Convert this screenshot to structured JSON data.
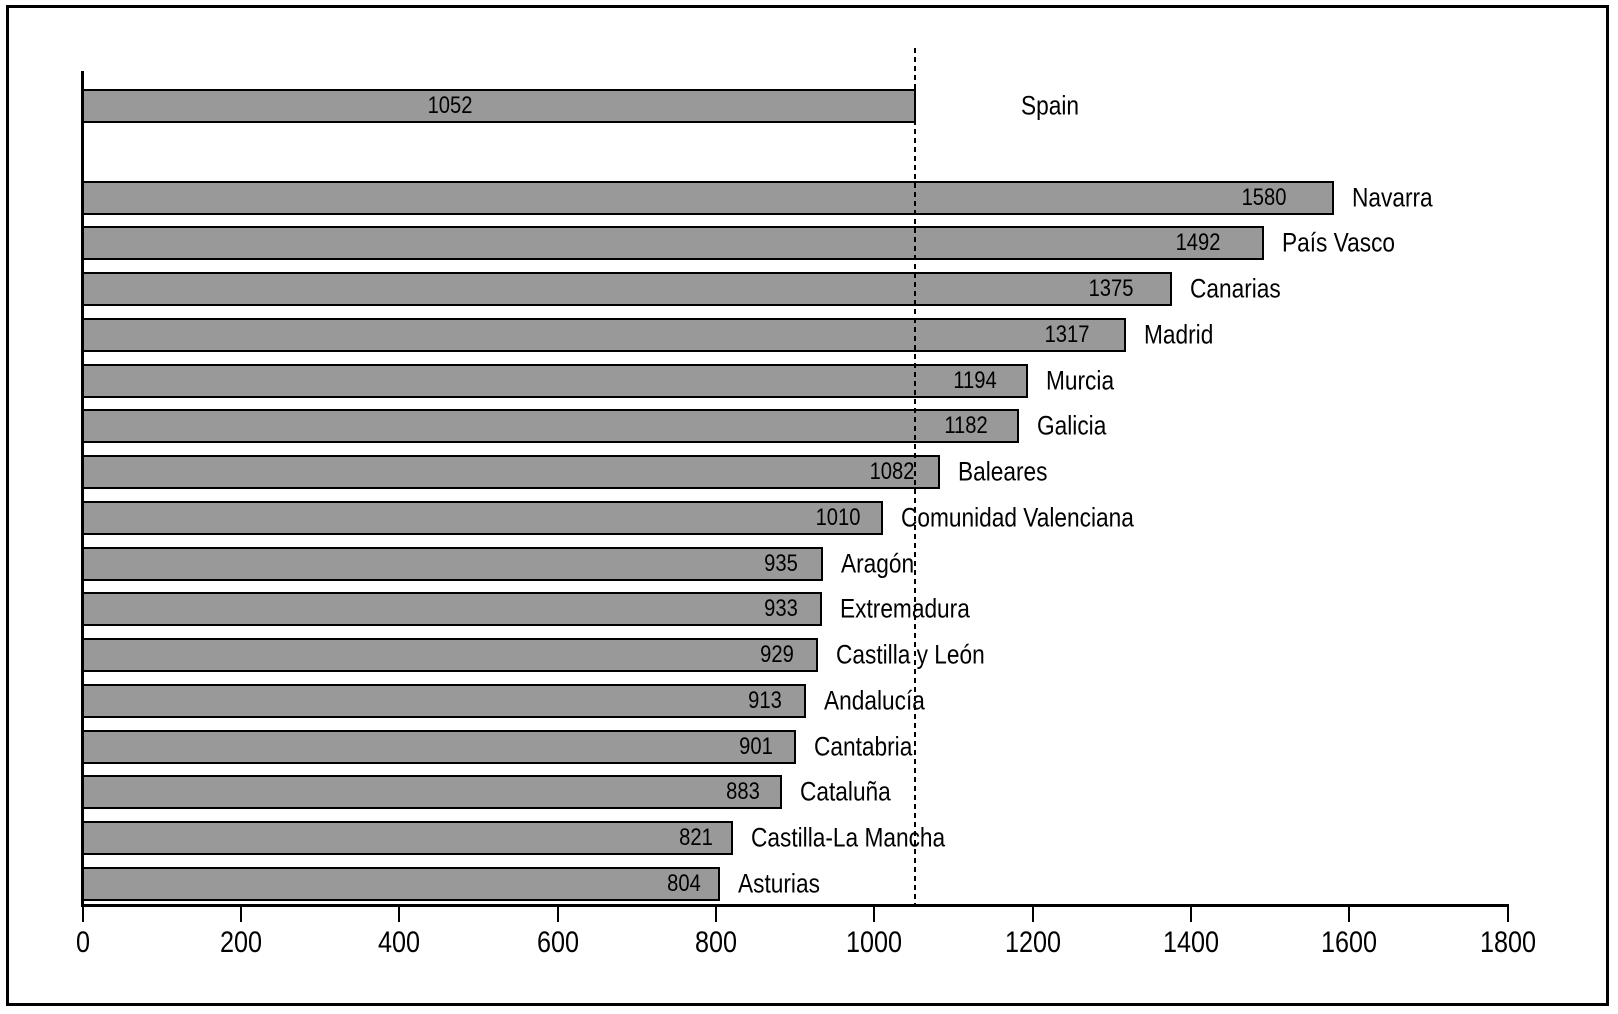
{
  "chart_data": {
    "type": "bar",
    "orientation": "horizontal",
    "title": "",
    "xlabel": "",
    "ylabel": "",
    "x_axis": {
      "min": 0,
      "max": 1800,
      "ticks": [
        0,
        200,
        400,
        600,
        800,
        1000,
        1200,
        1400,
        1600,
        1800
      ]
    },
    "grid": "off",
    "legend": "none",
    "reference_line": {
      "value": 1052,
      "style": "dashed"
    },
    "bar_color": "#999999",
    "bar_border_color": "#000000",
    "bars": [
      {
        "label": "Spain",
        "value": 1052,
        "group": "national"
      },
      {
        "label": "Navarra",
        "value": 1580,
        "group": "region"
      },
      {
        "label": "País Vasco",
        "value": 1492,
        "group": "region"
      },
      {
        "label": "Canarias",
        "value": 1375,
        "group": "region"
      },
      {
        "label": "Madrid",
        "value": 1317,
        "group": "region"
      },
      {
        "label": "Murcia",
        "value": 1194,
        "group": "region"
      },
      {
        "label": "Galicia",
        "value": 1182,
        "group": "region"
      },
      {
        "label": "Baleares",
        "value": 1082,
        "group": "region"
      },
      {
        "label": "Comunidad Valenciana",
        "value": 1010,
        "group": "region"
      },
      {
        "label": "Aragón",
        "value": 935,
        "group": "region"
      },
      {
        "label": "Extremadura",
        "value": 933,
        "group": "region"
      },
      {
        "label": "Castilla y León",
        "value": 929,
        "group": "region"
      },
      {
        "label": "Andalucía",
        "value": 913,
        "group": "region"
      },
      {
        "label": "Cantabria",
        "value": 901,
        "group": "region"
      },
      {
        "label": "Cataluña",
        "value": 883,
        "group": "region"
      },
      {
        "label": "Castilla-La Mancha",
        "value": 821,
        "group": "region"
      },
      {
        "label": "Asturias",
        "value": 804,
        "group": "region"
      }
    ]
  }
}
